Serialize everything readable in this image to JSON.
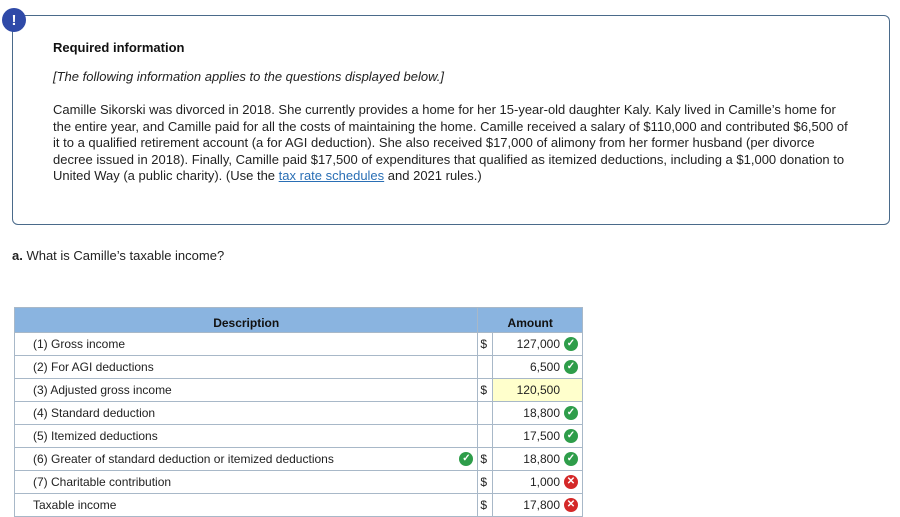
{
  "alert_glyph": "!",
  "info": {
    "title": "Required information",
    "subtitle": "[The following information applies to the questions displayed below.]",
    "body_1": "Camille Sikorski was divorced in 2018. She currently provides a home for her 15-year-old daughter Kaly. Kaly lived in Camille’s home for the entire year, and Camille paid for all the costs of maintaining the home. Camille received a salary of $110,000 and contributed $6,500 of it to a qualified retirement account (a for AGI deduction). She also received $17,000 of alimony from her former husband (per divorce decree issued in 2018). Finally, Camille paid $17,500 of expenditures that qualified as itemized deductions, including a $1,000 donation to United Way (a public charity). (Use the ",
    "link_text": "tax rate schedules",
    "body_2": " and 2021 rules.)"
  },
  "question": {
    "letter": "a.",
    "text": " What is Camille’s taxable income?"
  },
  "table": {
    "header_description": "Description",
    "header_amount": "Amount",
    "rows": [
      {
        "label": "(1) Gross income",
        "dollar": "$",
        "amount": "127,000",
        "status": "correct"
      },
      {
        "label": "(2) For AGI deductions",
        "dollar": "",
        "amount": "6,500",
        "status": "correct"
      },
      {
        "label": "(3) Adjusted gross income",
        "dollar": "$",
        "amount": "120,500",
        "status": ""
      },
      {
        "label": "(4) Standard deduction",
        "dollar": "",
        "amount": "18,800",
        "status": "correct"
      },
      {
        "label": "(5) Itemized deductions",
        "dollar": "",
        "amount": "17,500",
        "status": "correct"
      },
      {
        "label": "(6) Greater of standard deduction or itemized deductions",
        "dollar": "$",
        "amount": "18,800",
        "status": "correct"
      },
      {
        "label": "(7) Charitable contribution",
        "dollar": "$",
        "amount": "1,000",
        "status": "incorrect"
      },
      {
        "label": "Taxable income",
        "dollar": "$",
        "amount": "17,800",
        "status": "incorrect"
      }
    ]
  },
  "colors": {
    "header_bg": "#8ab4e0",
    "correct": "#2e9d4a",
    "incorrect": "#d42828",
    "highlight": "#ffffcc",
    "link": "#2a6fb5"
  }
}
